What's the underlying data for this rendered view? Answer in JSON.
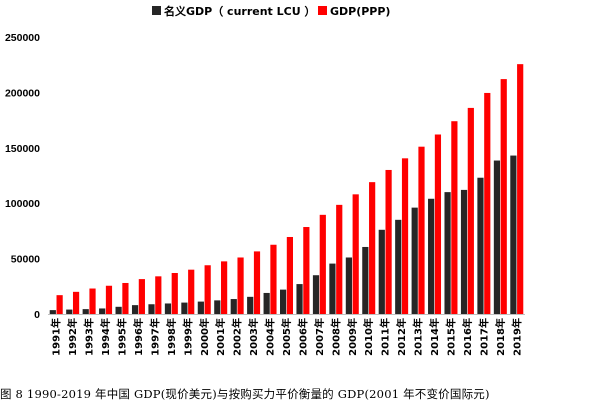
{
  "caption": "图 8 1990-2019 年中国 GDP(现价美元)与按购买力平价衡量的 GDP(2001 年不变价国际元)",
  "colors": {
    "nominal": "#262626",
    "ppp": "#ff0000",
    "axis": "#bfbfbf"
  },
  "chart_data": {
    "type": "bar",
    "title": "",
    "xlabel": "",
    "ylabel": "",
    "ylim": [
      0,
      250000
    ],
    "yticks": [
      0,
      50000,
      100000,
      150000,
      200000,
      250000
    ],
    "grid": false,
    "legend": "top",
    "categories": [
      "1991年",
      "1992年",
      "1993年",
      "1994年",
      "1995年",
      "1996年",
      "1997年",
      "1998年",
      "1999年",
      "2000年",
      "2001年",
      "2002年",
      "2003年",
      "2004年",
      "2005年",
      "2006年",
      "2007年",
      "2008年",
      "2009年",
      "2010年",
      "2011年",
      "2012年",
      "2013年",
      "2014年",
      "2015年",
      "2016年",
      "2017年",
      "2018年",
      "2019年"
    ],
    "series": [
      {
        "name": "名义GDP（ current LCU ）",
        "color": "#262626",
        "values": [
          3500,
          4000,
          4400,
          5000,
          6500,
          8000,
          8800,
          9500,
          10300,
          11200,
          12300,
          13500,
          15500,
          19000,
          22000,
          27000,
          35000,
          45500,
          51000,
          60500,
          76000,
          85000,
          96000,
          104000,
          110000,
          112000,
          123000,
          138500,
          143000
        ]
      },
      {
        "name": "GDP(PPP)",
        "color": "#ff0000",
        "values": [
          17000,
          20000,
          23000,
          25500,
          28000,
          31500,
          34000,
          37000,
          40000,
          44000,
          47500,
          51000,
          56500,
          62500,
          69500,
          78500,
          89500,
          98500,
          108000,
          119000,
          130000,
          140500,
          151000,
          162000,
          174000,
          186000,
          199500,
          212000,
          225500
        ]
      }
    ]
  }
}
